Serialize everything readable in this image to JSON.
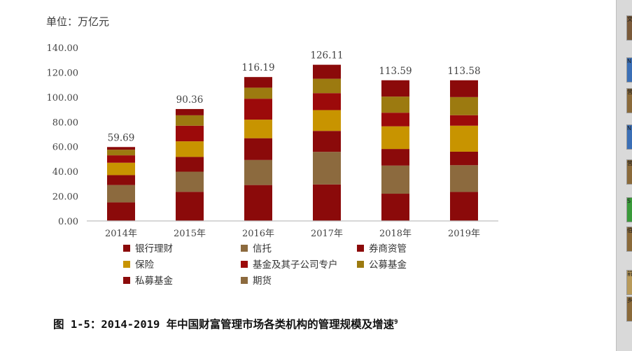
{
  "unit_label": "单位：万亿元",
  "caption": {
    "text": "图 1-5：2014-2019 年中国财富管理市场各类机构的管理规模及增速",
    "footnote": "9"
  },
  "side_strip": {
    "thumbs": [
      {
        "text": "文",
        "color": "#7a5a3a"
      },
      {
        "text": "N",
        "color": "#3b6fb6"
      },
      {
        "text": "营",
        "color": "#8a6a3a"
      },
      {
        "text": "N",
        "color": "#3b6fb6"
      },
      {
        "text": "营",
        "color": "#8a6a3a"
      },
      {
        "text": "S",
        "color": "#3a9a3a"
      },
      {
        "text": "伯",
        "color": "#8a6a3a"
      },
      {
        "text": "前",
        "color": "#b89a5a"
      },
      {
        "text": "乡",
        "color": "#8a6a3a"
      }
    ]
  },
  "chart_data": {
    "type": "bar",
    "stacked": true,
    "categories": [
      "2014年",
      "2015年",
      "2016年",
      "2017年",
      "2018年",
      "2019年"
    ],
    "totals": [
      59.69,
      90.36,
      116.19,
      126.11,
      113.59,
      113.58
    ],
    "total_labels": [
      "59.69",
      "90.36",
      "116.19",
      "126.11",
      "113.59",
      "113.58"
    ],
    "ylim": [
      0,
      140
    ],
    "yticks": [
      "0.00",
      "20.00",
      "40.00",
      "60.00",
      "80.00",
      "100.00",
      "120.00",
      "140.00"
    ],
    "series": [
      {
        "name": "银行理财",
        "color": "#8b0a0a",
        "values": [
          15.0,
          23.5,
          29.0,
          29.5,
          22.0,
          23.4
        ]
      },
      {
        "name": "信托",
        "color": "#8c6a3e",
        "values": [
          14.0,
          16.3,
          20.2,
          26.3,
          22.7,
          21.6
        ]
      },
      {
        "name": "券商资管",
        "color": "#8b0a0a",
        "values": [
          8.0,
          11.9,
          17.6,
          16.9,
          13.4,
          10.9
        ]
      },
      {
        "name": "保险",
        "color": "#c89400",
        "values": [
          10.0,
          12.6,
          15.0,
          16.8,
          18.3,
          21.0
        ]
      },
      {
        "name": "基金及其子公司专户",
        "color": "#9c0a0a",
        "values": [
          6.0,
          12.6,
          16.9,
          13.7,
          11.0,
          8.5
        ]
      },
      {
        "name": "公募基金",
        "color": "#9c7a10",
        "values": [
          4.5,
          8.4,
          8.9,
          11.6,
          13.0,
          14.6
        ]
      },
      {
        "name": "私募基金",
        "color": "#8b0a0a",
        "values": [
          2.19,
          5.06,
          8.59,
          11.31,
          13.19,
          13.58
        ]
      },
      {
        "name": "期货",
        "color": "#8c6a3e",
        "values": [
          0,
          0,
          0,
          0,
          0,
          0
        ]
      }
    ],
    "legend_position": "bottom",
    "grid": false
  }
}
